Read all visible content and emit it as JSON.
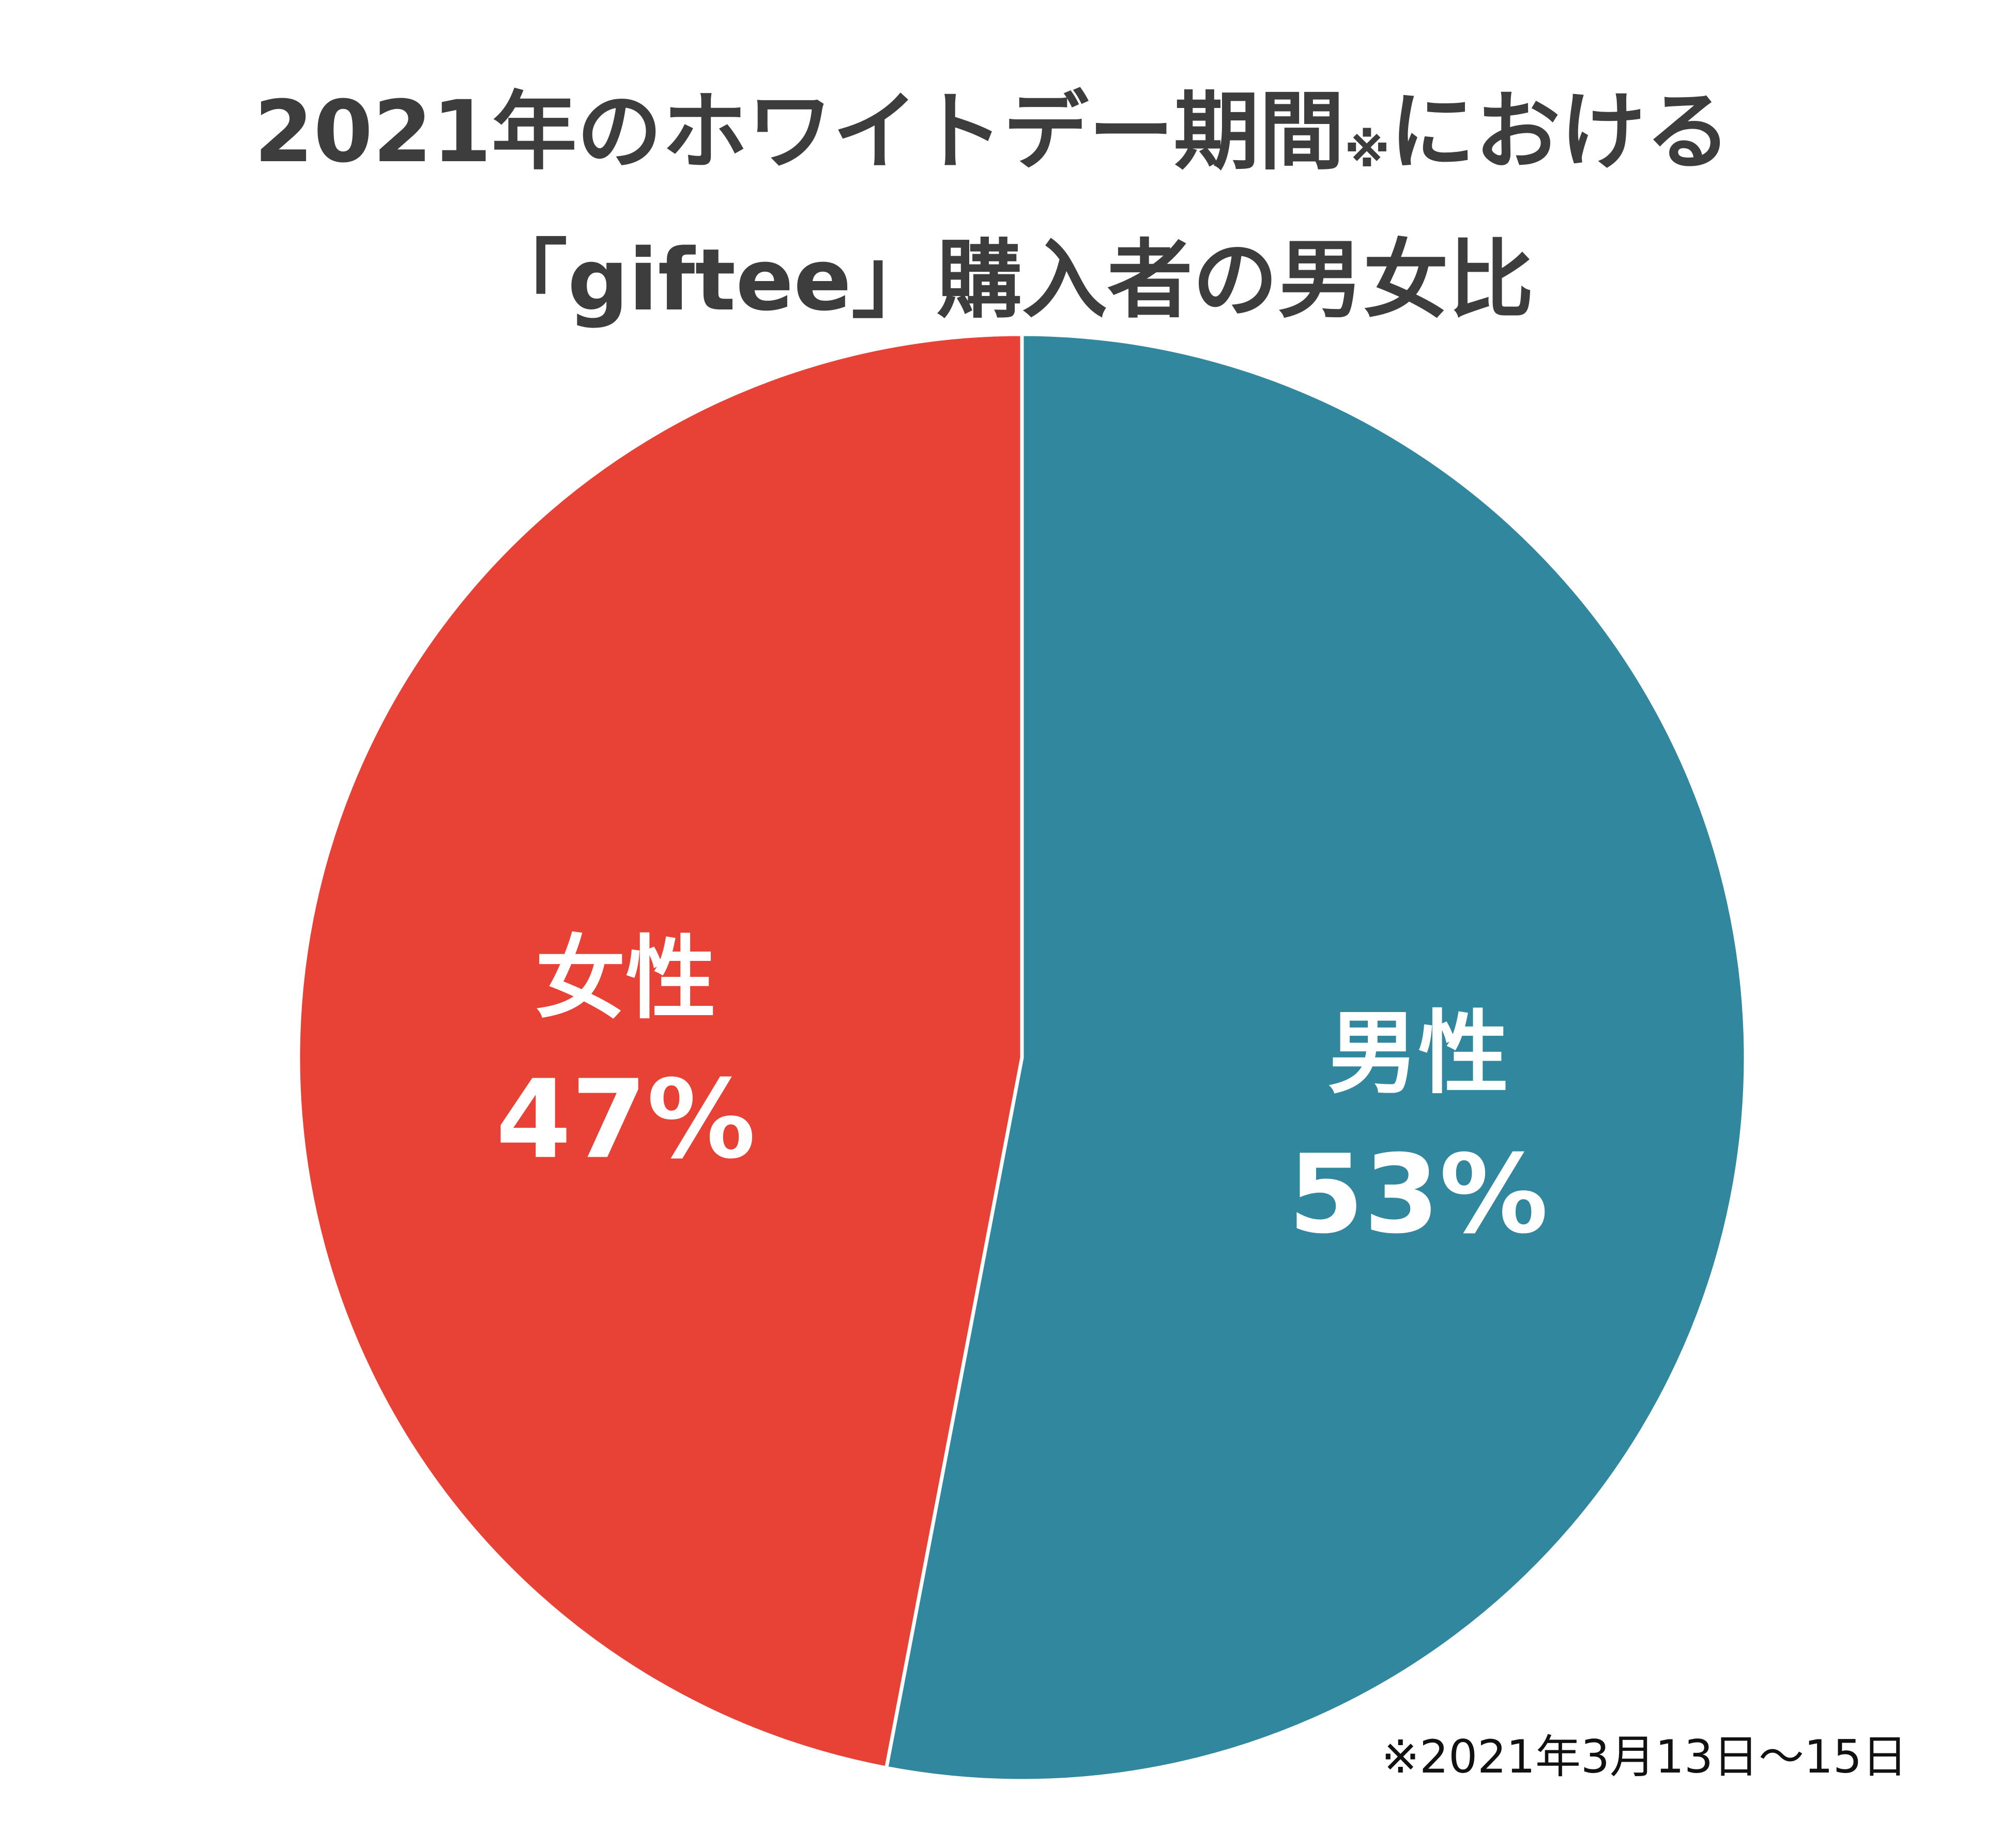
{
  "chart_data": {
    "type": "pie",
    "title_line1_main": "2021年のホワイトデー期間",
    "title_line1_mark": "※",
    "title_line1_tail": "における",
    "title_line2": "「giftee」購入者の男女比",
    "slices": [
      {
        "label": "男性",
        "value": 53,
        "value_label": "53%",
        "color": "#31879e"
      },
      {
        "label": "女性",
        "value": 47,
        "value_label": "47%",
        "color": "#e84236"
      }
    ],
    "start_angle": "12 o'clock",
    "direction": "clockwise",
    "legend": "none",
    "footnote": "※2021年3月13日～15日"
  }
}
